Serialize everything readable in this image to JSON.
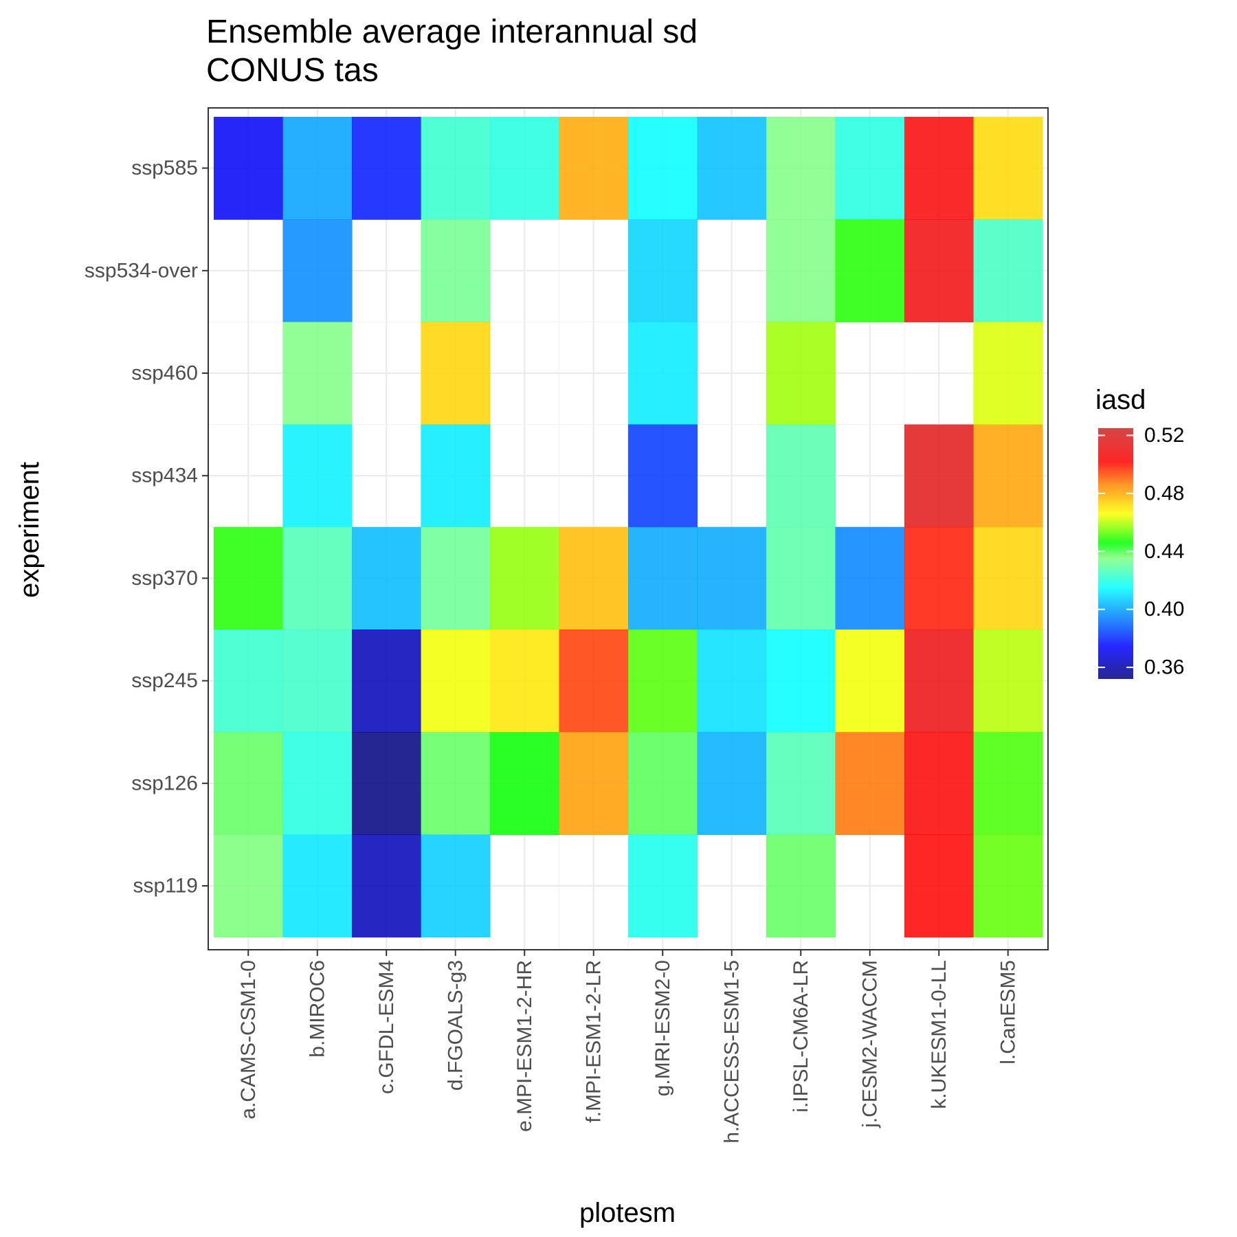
{
  "chart_data": {
    "type": "heatmap",
    "title_line1": "Ensemble average interannual sd",
    "title_line2": "CONUS tas",
    "xlabel": "plotesm",
    "ylabel": "experiment",
    "x_categories": [
      "a.CAMS-CSM1-0",
      "b.MIROC6",
      "c.GFDL-ESM4",
      "d.FGOALS-g3",
      "e.MPI-ESM1-2-HR",
      "f.MPI-ESM1-2-LR",
      "g.MRI-ESM2-0",
      "h.ACCESS-ESM1-5",
      "i.IPSL-CM6A-LR",
      "j.CESM2-WACCM",
      "k.UKESM1-0-LL",
      "l.CanESM5"
    ],
    "y_categories": [
      "ssp585",
      "ssp534-over",
      "ssp460",
      "ssp434",
      "ssp370",
      "ssp245",
      "ssp126",
      "ssp119"
    ],
    "values": [
      [
        0.373,
        0.4,
        0.378,
        0.423,
        0.42,
        0.48,
        0.415,
        0.405,
        0.435,
        0.42,
        0.505,
        0.472
      ],
      [
        null,
        0.396,
        null,
        0.433,
        null,
        null,
        0.408,
        null,
        0.435,
        0.448,
        0.508,
        0.425
      ],
      [
        null,
        0.435,
        null,
        0.473,
        null,
        null,
        0.412,
        null,
        0.458,
        null,
        null,
        0.463
      ],
      [
        null,
        0.413,
        null,
        0.412,
        null,
        null,
        0.383,
        null,
        0.428,
        null,
        0.516,
        0.481
      ],
      [
        0.448,
        0.427,
        0.404,
        0.432,
        0.457,
        0.477,
        0.401,
        0.401,
        0.429,
        0.395,
        0.499,
        0.473
      ],
      [
        0.423,
        0.424,
        0.362,
        0.465,
        0.47,
        0.495,
        0.452,
        0.41,
        0.415,
        0.465,
        0.51,
        0.46
      ],
      [
        0.438,
        0.42,
        0.352,
        0.438,
        0.446,
        0.482,
        0.439,
        0.402,
        0.427,
        0.488,
        0.503,
        0.451
      ],
      [
        0.436,
        0.411,
        0.362,
        0.407,
        null,
        null,
        0.418,
        null,
        0.438,
        null,
        0.502,
        0.453
      ]
    ],
    "legend": {
      "title": "iasd",
      "ticks": [
        0.36,
        0.4,
        0.44,
        0.48,
        0.52
      ],
      "tick_labels": [
        "0.36",
        "0.40",
        "0.44",
        "0.48",
        "0.52"
      ],
      "range": [
        0.352,
        0.525
      ]
    },
    "colorscale": [
      [
        0.0,
        "#00007f"
      ],
      [
        0.129,
        "#0000ff"
      ],
      [
        0.247,
        "#0080ff"
      ],
      [
        0.364,
        "#00ffff"
      ],
      [
        0.482,
        "#80ff80"
      ],
      [
        0.541,
        "#00ff00"
      ],
      [
        0.6,
        "#80ff00"
      ],
      [
        0.659,
        "#ffff00"
      ],
      [
        0.777,
        "#ff8000"
      ],
      [
        0.866,
        "#ff0000"
      ],
      [
        1.0,
        "#cd2626"
      ]
    ],
    "cell_alpha": 0.85,
    "panel_background": "#ffffff",
    "grid_color": "#ebebeb",
    "border_color": "#333333",
    "grid": true
  }
}
